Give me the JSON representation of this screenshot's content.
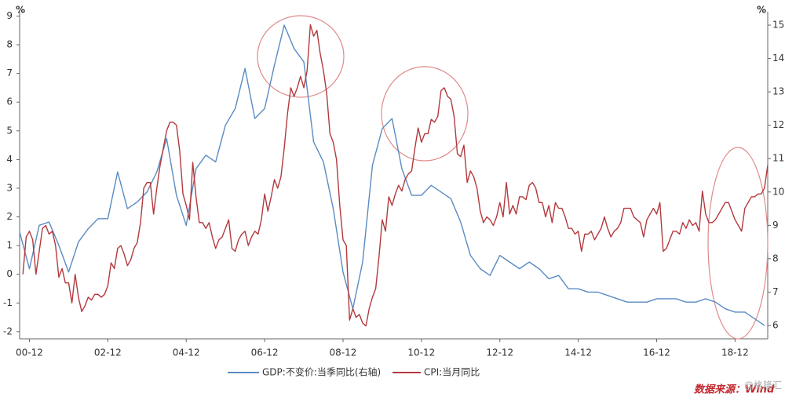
{
  "chart_data": {
    "type": "line",
    "y_unit": "%",
    "y2_unit": "%",
    "xlim": [
      "00-09",
      "19-10"
    ],
    "xticks": [
      "00-12",
      "02-12",
      "04-12",
      "06-12",
      "08-12",
      "10-12",
      "12-12",
      "14-12",
      "16-12",
      "18-12"
    ],
    "ylim": [
      -2.25,
      9.15
    ],
    "yticks": [
      -2,
      -1,
      0,
      1,
      2,
      3,
      4,
      5,
      6,
      7,
      8,
      9
    ],
    "y2lim": [
      5.6,
      15.4
    ],
    "y2ticks": [
      6,
      7,
      8,
      9,
      10,
      11,
      12,
      13,
      14,
      15
    ],
    "grid": false,
    "series": [
      {
        "name": "GDP:不变价:当季同比(右轴)",
        "color": "#5a8bc2",
        "axis": "y2",
        "x": [
          "00-09",
          "00-12",
          "01-03",
          "01-06",
          "01-09",
          "01-12",
          "02-03",
          "02-06",
          "02-09",
          "02-12",
          "03-03",
          "03-06",
          "03-09",
          "03-12",
          "04-03",
          "04-06",
          "04-09",
          "04-12",
          "05-03",
          "05-06",
          "05-09",
          "05-12",
          "06-03",
          "06-06",
          "06-09",
          "06-12",
          "07-03",
          "07-06",
          "07-09",
          "07-12",
          "08-03",
          "08-06",
          "08-09",
          "08-12",
          "09-03",
          "09-06",
          "09-09",
          "09-12",
          "10-03",
          "10-06",
          "10-09",
          "10-12",
          "11-03",
          "11-06",
          "11-09",
          "11-12",
          "12-03",
          "12-06",
          "12-09",
          "12-12",
          "13-03",
          "13-06",
          "13-09",
          "13-12",
          "14-03",
          "14-06",
          "14-09",
          "14-12",
          "15-03",
          "15-06",
          "15-09",
          "15-12",
          "16-03",
          "16-06",
          "16-09",
          "16-12",
          "17-03",
          "17-06",
          "17-09",
          "17-12",
          "18-03",
          "18-06",
          "18-09",
          "18-12",
          "19-03",
          "19-06",
          "19-09"
        ],
        "values": [
          8.8,
          7.7,
          9.0,
          9.1,
          8.4,
          7.6,
          8.5,
          8.9,
          9.2,
          9.2,
          10.6,
          9.5,
          9.7,
          10.0,
          10.6,
          11.6,
          9.9,
          9.0,
          10.7,
          11.1,
          10.9,
          12.0,
          12.5,
          13.7,
          12.2,
          12.5,
          13.8,
          15.0,
          14.3,
          13.9,
          11.5,
          10.9,
          9.5,
          7.6,
          6.5,
          7.9,
          10.8,
          11.9,
          12.2,
          10.7,
          9.9,
          9.9,
          10.2,
          10.0,
          9.8,
          9.1,
          8.1,
          7.7,
          7.5,
          8.1,
          7.9,
          7.7,
          7.9,
          7.7,
          7.4,
          7.5,
          7.1,
          7.1,
          7.0,
          7.0,
          6.9,
          6.8,
          6.7,
          6.7,
          6.7,
          6.8,
          6.8,
          6.8,
          6.7,
          6.7,
          6.8,
          6.7,
          6.5,
          6.4,
          6.4,
          6.2,
          6.0
        ]
      },
      {
        "name": "CPI:当月同比",
        "color": "#b3393d",
        "axis": "y",
        "x": [
          "00-10",
          "00-11",
          "00-12",
          "01-01",
          "01-02",
          "01-03",
          "01-04",
          "01-05",
          "01-06",
          "01-07",
          "01-08",
          "01-09",
          "01-10",
          "01-11",
          "01-12",
          "02-01",
          "02-02",
          "02-03",
          "02-04",
          "02-05",
          "02-06",
          "02-07",
          "02-08",
          "02-09",
          "02-10",
          "02-11",
          "02-12",
          "03-01",
          "03-02",
          "03-03",
          "03-04",
          "03-05",
          "03-06",
          "03-07",
          "03-08",
          "03-09",
          "03-10",
          "03-11",
          "03-12",
          "04-01",
          "04-02",
          "04-03",
          "04-04",
          "04-05",
          "04-06",
          "04-07",
          "04-08",
          "04-09",
          "04-10",
          "04-11",
          "04-12",
          "05-01",
          "05-02",
          "05-03",
          "05-04",
          "05-05",
          "05-06",
          "05-07",
          "05-08",
          "05-09",
          "05-10",
          "05-11",
          "05-12",
          "06-01",
          "06-02",
          "06-03",
          "06-04",
          "06-05",
          "06-06",
          "06-07",
          "06-08",
          "06-09",
          "06-10",
          "06-11",
          "06-12",
          "07-01",
          "07-02",
          "07-03",
          "07-04",
          "07-05",
          "07-06",
          "07-07",
          "07-08",
          "07-09",
          "07-10",
          "07-11",
          "07-12",
          "08-01",
          "08-02",
          "08-03",
          "08-04",
          "08-05",
          "08-06",
          "08-07",
          "08-08",
          "08-09",
          "08-10",
          "08-11",
          "08-12",
          "09-01",
          "09-02",
          "09-03",
          "09-04",
          "09-05",
          "09-06",
          "09-07",
          "09-08",
          "09-09",
          "09-10",
          "09-11",
          "09-12",
          "10-01",
          "10-02",
          "10-03",
          "10-04",
          "10-05",
          "10-06",
          "10-07",
          "10-08",
          "10-09",
          "10-10",
          "10-11",
          "10-12",
          "11-01",
          "11-02",
          "11-03",
          "11-04",
          "11-05",
          "11-06",
          "11-07",
          "11-08",
          "11-09",
          "11-10",
          "11-11",
          "11-12",
          "12-01",
          "12-02",
          "12-03",
          "12-04",
          "12-05",
          "12-06",
          "12-07",
          "12-08",
          "12-09",
          "12-10",
          "12-11",
          "12-12",
          "13-01",
          "13-02",
          "13-03",
          "13-04",
          "13-05",
          "13-06",
          "13-07",
          "13-08",
          "13-09",
          "13-10",
          "13-11",
          "13-12",
          "14-01",
          "14-02",
          "14-03",
          "14-04",
          "14-05",
          "14-06",
          "14-07",
          "14-08",
          "14-09",
          "14-10",
          "14-11",
          "14-12",
          "15-01",
          "15-02",
          "15-03",
          "15-04",
          "15-05",
          "15-06",
          "15-07",
          "15-08",
          "15-09",
          "15-10",
          "15-11",
          "15-12",
          "16-01",
          "16-02",
          "16-03",
          "16-04",
          "16-05",
          "16-06",
          "16-07",
          "16-08",
          "16-09",
          "16-10",
          "16-11",
          "16-12",
          "17-01",
          "17-02",
          "17-03",
          "17-04",
          "17-05",
          "17-06",
          "17-07",
          "17-08",
          "17-09",
          "17-10",
          "17-11",
          "17-12",
          "18-01",
          "18-02",
          "18-03",
          "18-04",
          "18-05",
          "18-06",
          "18-07",
          "18-08",
          "18-09",
          "18-10",
          "18-11",
          "18-12",
          "19-01",
          "19-02",
          "19-03",
          "19-04",
          "19-05",
          "19-06",
          "19-07",
          "19-08",
          "19-09",
          "19-10"
        ],
        "values": [
          0.0,
          1.3,
          1.5,
          1.2,
          0.0,
          0.8,
          1.6,
          1.7,
          1.4,
          1.5,
          1.0,
          -0.1,
          0.2,
          -0.3,
          -0.3,
          -1.0,
          0.0,
          -0.8,
          -1.3,
          -1.1,
          -0.8,
          -0.9,
          -0.7,
          -0.7,
          -0.8,
          -0.7,
          -0.4,
          0.4,
          0.2,
          0.9,
          1.0,
          0.7,
          0.3,
          0.5,
          0.9,
          1.1,
          1.8,
          3.0,
          3.2,
          3.2,
          2.1,
          3.0,
          3.8,
          4.4,
          5.0,
          5.3,
          5.3,
          5.2,
          4.3,
          2.8,
          2.4,
          1.9,
          3.9,
          2.7,
          1.8,
          1.8,
          1.6,
          1.8,
          1.3,
          0.9,
          1.2,
          1.3,
          1.6,
          1.9,
          0.9,
          0.8,
          1.2,
          1.4,
          1.5,
          1.0,
          1.3,
          1.5,
          1.4,
          1.9,
          2.8,
          2.2,
          2.7,
          3.3,
          3.0,
          3.4,
          4.4,
          5.6,
          6.5,
          6.2,
          6.5,
          6.9,
          6.5,
          7.1,
          8.7,
          8.3,
          8.5,
          7.7,
          7.1,
          6.3,
          4.9,
          4.6,
          4.0,
          2.4,
          1.2,
          1.0,
          -1.6,
          -1.2,
          -1.5,
          -1.4,
          -1.7,
          -1.8,
          -1.2,
          -0.8,
          -0.5,
          0.6,
          1.9,
          1.5,
          2.7,
          2.4,
          2.8,
          3.1,
          2.9,
          3.3,
          3.5,
          3.6,
          4.4,
          5.1,
          4.6,
          4.9,
          4.9,
          5.4,
          5.3,
          5.5,
          6.4,
          6.5,
          6.2,
          6.1,
          5.5,
          4.2,
          4.1,
          4.5,
          3.2,
          3.6,
          3.4,
          3.0,
          2.2,
          1.8,
          2.0,
          1.9,
          1.7,
          2.0,
          2.5,
          2.0,
          3.2,
          2.1,
          2.4,
          2.1,
          2.7,
          2.7,
          2.6,
          3.1,
          3.2,
          3.0,
          2.5,
          2.5,
          2.0,
          2.4,
          1.8,
          2.5,
          2.3,
          2.3,
          2.0,
          1.6,
          1.6,
          1.4,
          1.5,
          0.8,
          1.4,
          1.4,
          1.5,
          1.2,
          1.4,
          1.6,
          2.0,
          1.6,
          1.3,
          1.5,
          1.6,
          1.8,
          2.3,
          2.3,
          2.3,
          2.0,
          1.9,
          1.8,
          1.3,
          1.9,
          2.1,
          2.3,
          2.1,
          2.5,
          0.8,
          0.9,
          1.2,
          1.5,
          1.5,
          1.4,
          1.8,
          1.6,
          1.9,
          1.7,
          1.8,
          1.5,
          2.9,
          2.1,
          1.8,
          1.8,
          1.9,
          2.1,
          2.3,
          2.5,
          2.5,
          2.2,
          1.9,
          1.7,
          1.5,
          2.3,
          2.5,
          2.7,
          2.7,
          2.8,
          2.8,
          3.0,
          3.8
        ]
      }
    ],
    "source": "数据来源：Wind",
    "watermark": "@格隆汇"
  }
}
